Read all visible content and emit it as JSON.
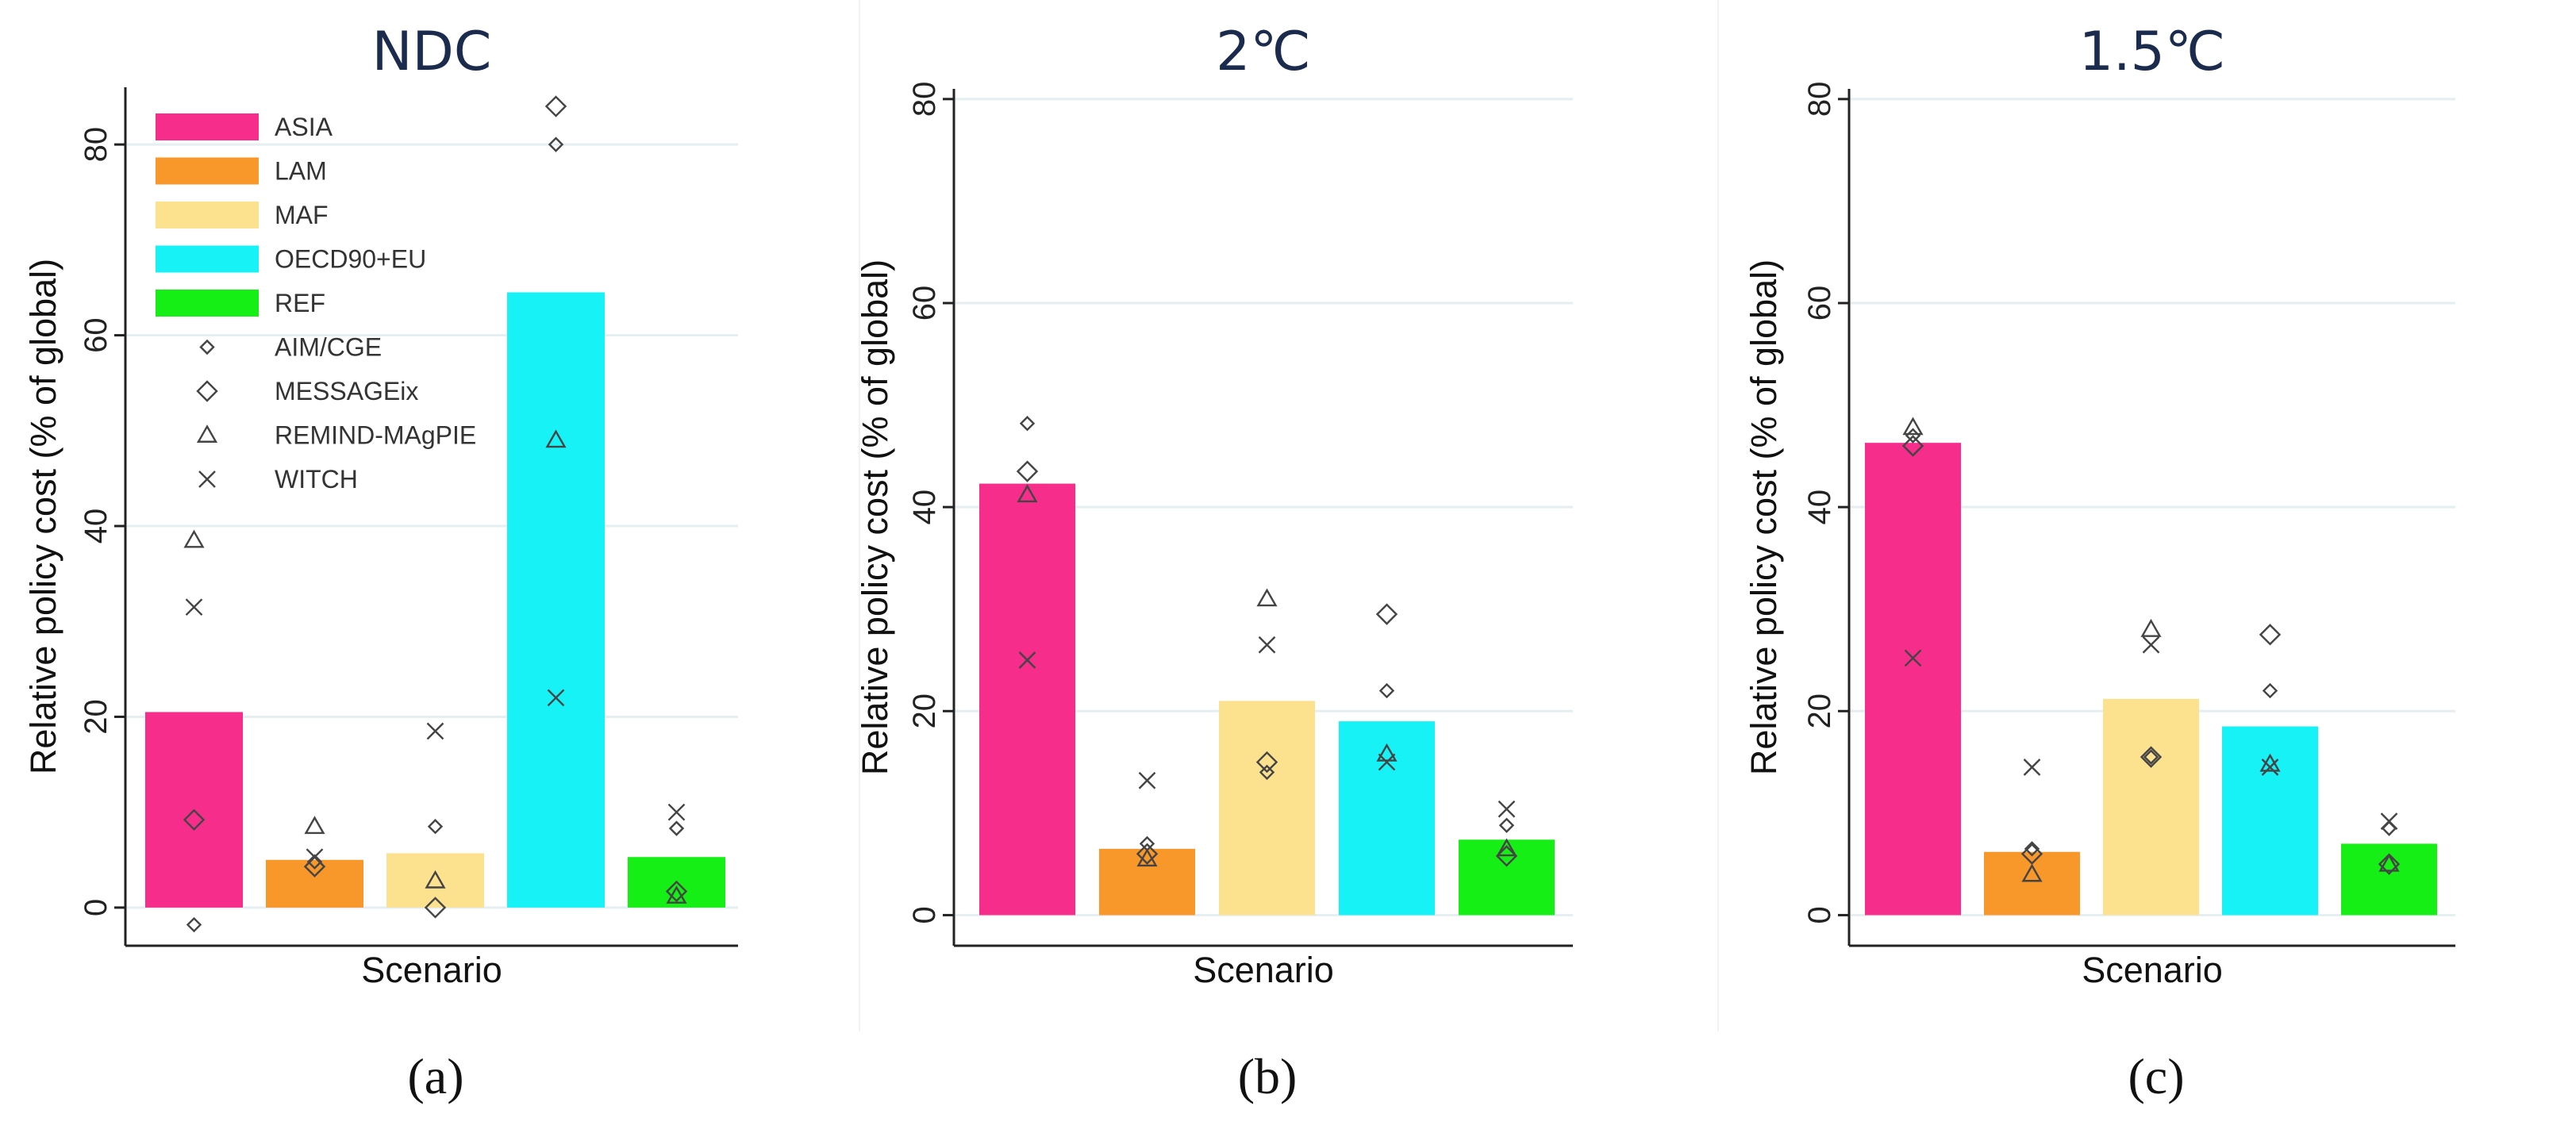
{
  "chart_data": [
    {
      "type": "bar",
      "title": "NDC",
      "caption": "(a)",
      "xlabel": "Scenario",
      "ylabel": "Relative policy cost (% of global)",
      "ylim": [
        -4,
        86
      ],
      "yticks": [
        0,
        20,
        40,
        60,
        80
      ],
      "grid": true,
      "legend": "top-left",
      "categories": [
        "ASIA",
        "LAM",
        "MAF",
        "OECD90+EU",
        "REF"
      ],
      "values": [
        20.5,
        5,
        5.7,
        64.5,
        5.3
      ],
      "models": {
        "AIM/CGE": [
          -1.8,
          4.8,
          8.5,
          80,
          8.3
        ],
        "MESSAGEix": [
          9.2,
          4.3,
          0,
          84,
          1.7
        ],
        "REMIND-MAgPIE": [
          38.5,
          8.5,
          2.8,
          49,
          1.2
        ],
        "WITCH": [
          31.5,
          5.3,
          18.5,
          22,
          10
        ]
      }
    },
    {
      "type": "bar",
      "title": "2℃",
      "caption": "(b)",
      "xlabel": "Scenario",
      "ylabel": "Relative policy cost (% of global)",
      "ylim": [
        -3,
        81
      ],
      "yticks": [
        0,
        20,
        40,
        60,
        80
      ],
      "grid": true,
      "categories": [
        "ASIA",
        "LAM",
        "MAF",
        "OECD90+EU",
        "REF"
      ],
      "values": [
        42.3,
        6.5,
        21,
        19,
        7.4
      ],
      "models": {
        "AIM/CGE": [
          48.2,
          7,
          14,
          22,
          8.8
        ],
        "MESSAGEix": [
          43.5,
          6,
          15,
          29.5,
          5.8
        ],
        "REMIND-MAgPIE": [
          41.2,
          5.5,
          31,
          15.8,
          6.5
        ],
        "WITCH": [
          25,
          13.2,
          26.5,
          15,
          10.4
        ]
      }
    },
    {
      "type": "bar",
      "title": "1.5℃",
      "caption": "(c)",
      "xlabel": "Scenario",
      "ylabel": "Relative policy cost (% of global)",
      "ylim": [
        -3,
        81
      ],
      "yticks": [
        0,
        20,
        40,
        60,
        80
      ],
      "grid": true,
      "categories": [
        "ASIA",
        "LAM",
        "MAF",
        "OECD90+EU",
        "REF"
      ],
      "values": [
        46.3,
        6.2,
        21.2,
        18.5,
        7
      ],
      "models": {
        "AIM/CGE": [
          47,
          6.5,
          15.5,
          22,
          8.5
        ],
        "MESSAGEix": [
          46,
          6,
          15.5,
          27.5,
          5
        ],
        "REMIND-MAgPIE": [
          47.8,
          4,
          28,
          14.8,
          5
        ],
        "WITCH": [
          25.2,
          14.5,
          26.5,
          14.5,
          9.2
        ]
      }
    }
  ],
  "legend": {
    "regions": [
      "ASIA",
      "LAM",
      "MAF",
      "OECD90+EU",
      "REF"
    ],
    "models": [
      "AIM/CGE",
      "MESSAGEix",
      "REMIND-MAgPIE",
      "WITCH"
    ]
  },
  "colors": {
    "ASIA": "#f72d8c",
    "LAM": "#f8972a",
    "MAF": "#fce28f",
    "OECD90+EU": "#17f2f7",
    "REF": "#16ef16"
  },
  "marker_shapes": {
    "AIM/CGE": "small-diamond",
    "MESSAGEix": "diamond",
    "REMIND-MAgPIE": "triangle",
    "WITCH": "cross"
  }
}
